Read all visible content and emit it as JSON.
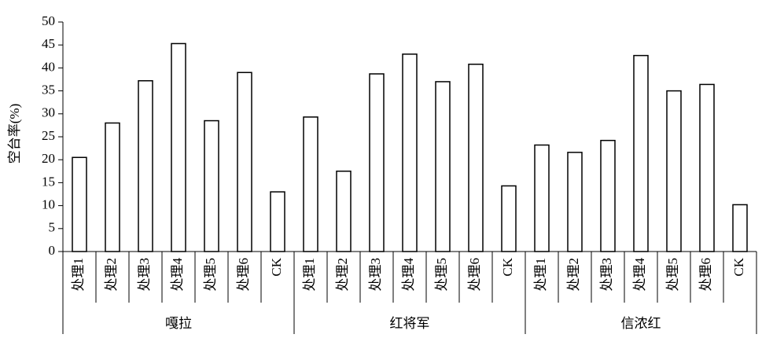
{
  "chart_data": {
    "type": "bar",
    "y_label": "空台率(%)",
    "ylim": [
      0,
      50
    ],
    "yticks": [
      0,
      5,
      10,
      15,
      20,
      25,
      30,
      35,
      40,
      45,
      50
    ],
    "color": "#ffffff",
    "groups": [
      {
        "name": "嘎拉",
        "categories": [
          "处理1",
          "处理2",
          "处理3",
          "处理4",
          "处理5",
          "处理6",
          "CK"
        ],
        "values": [
          20.5,
          28,
          37.2,
          45.3,
          28.5,
          39,
          13
        ]
      },
      {
        "name": "红将军",
        "categories": [
          "处理1",
          "处理2",
          "处理3",
          "处理4",
          "处理5",
          "处理6",
          "CK"
        ],
        "values": [
          29.3,
          17.5,
          38.7,
          43,
          37,
          40.8,
          14.3
        ]
      },
      {
        "name": "信浓红",
        "categories": [
          "处理1",
          "处理2",
          "处理3",
          "处理4",
          "处理5",
          "处理6",
          "CK"
        ],
        "values": [
          23.2,
          21.6,
          24.2,
          42.7,
          35,
          36.4,
          10.2
        ]
      }
    ]
  }
}
